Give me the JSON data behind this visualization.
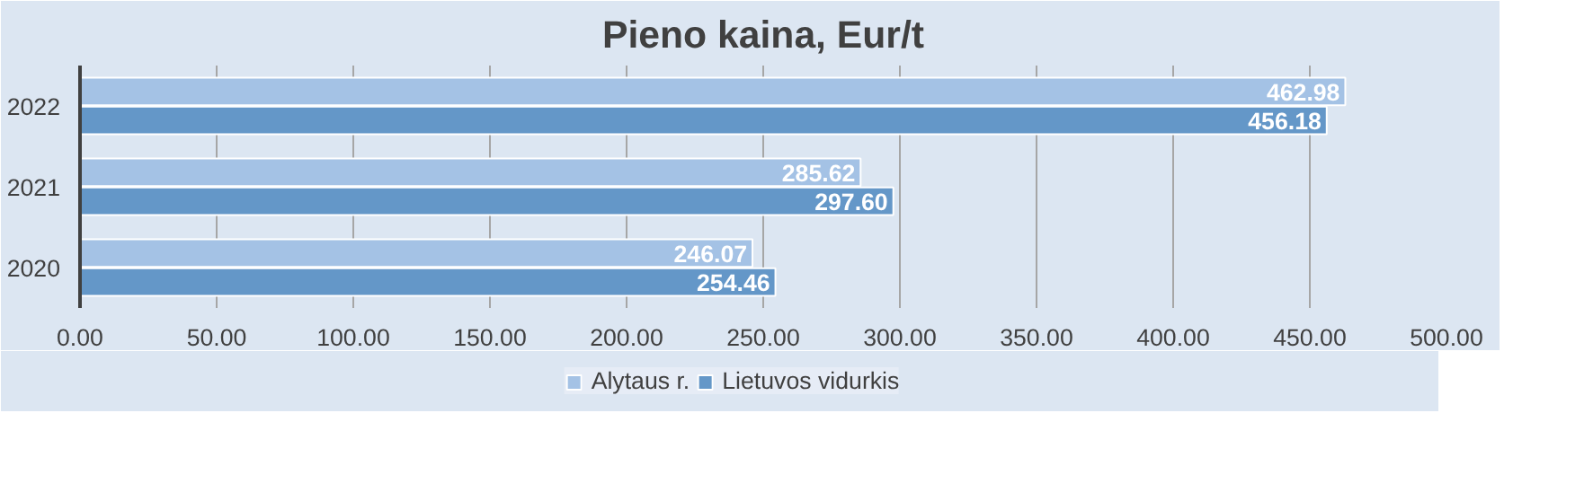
{
  "chart_data": {
    "type": "bar",
    "orientation": "horizontal",
    "title": "Pieno kaina, Eur/t",
    "categories": [
      "2022",
      "2021",
      "2020"
    ],
    "series": [
      {
        "name": "Alytaus r.",
        "color": "#a4c2e5",
        "values": [
          462.98,
          285.62,
          246.07
        ],
        "value_labels": [
          "462.98",
          "285.62",
          "246.07"
        ]
      },
      {
        "name": "Lietuvos vidurkis",
        "color": "#6497c8",
        "values": [
          456.18,
          297.6,
          254.46
        ],
        "value_labels": [
          "456.18",
          "297.60",
          "254.46"
        ]
      }
    ],
    "xlim": [
      0,
      500
    ],
    "xticks": [
      {
        "value": 0,
        "label": "0.00"
      },
      {
        "value": 50,
        "label": "50.00"
      },
      {
        "value": 100,
        "label": "100.00"
      },
      {
        "value": 150,
        "label": "150.00"
      },
      {
        "value": 200,
        "label": "200.00"
      },
      {
        "value": 250,
        "label": "250.00"
      },
      {
        "value": 300,
        "label": "300.00"
      },
      {
        "value": 350,
        "label": "350.00"
      },
      {
        "value": 400,
        "label": "400.00"
      },
      {
        "value": 450,
        "label": "450.00"
      },
      {
        "value": 500,
        "label": "500.00"
      }
    ],
    "grid": "x",
    "legend": "bottom"
  }
}
